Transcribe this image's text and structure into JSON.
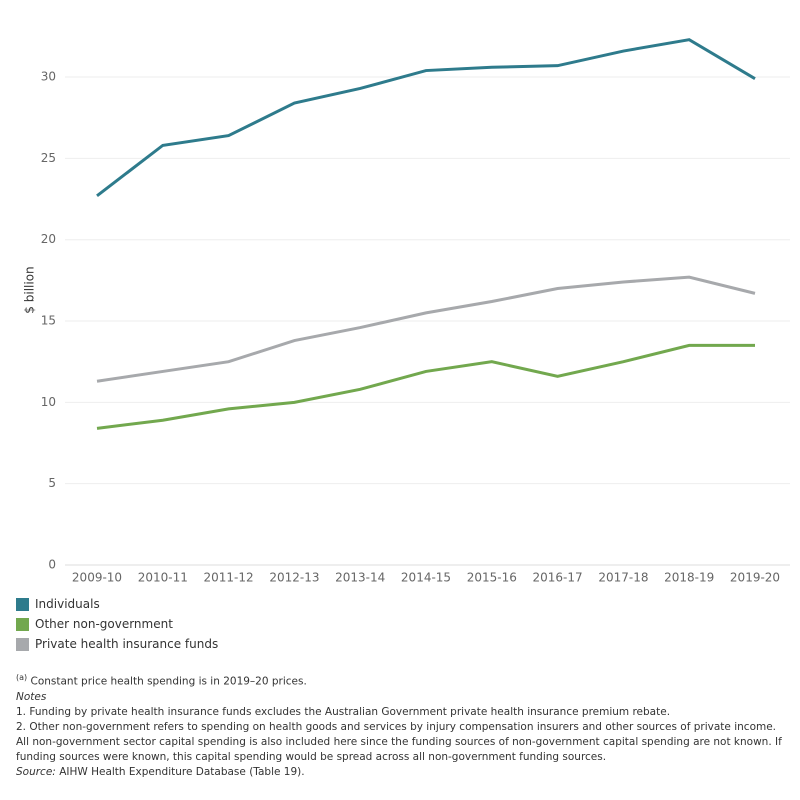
{
  "chart_data": {
    "type": "line",
    "y_label": "$ billion",
    "categories": [
      "2009-10",
      "2010-11",
      "2011-12",
      "2012-13",
      "2013-14",
      "2014-15",
      "2015-16",
      "2016-17",
      "2017-18",
      "2018-19",
      "2019-20"
    ],
    "series": [
      {
        "name": "Individuals",
        "color": "#2e7b8c",
        "values": [
          22.7,
          25.8,
          26.4,
          28.4,
          29.3,
          30.4,
          30.6,
          30.7,
          31.6,
          32.3,
          29.9
        ]
      },
      {
        "name": "Other non-government",
        "color": "#72a84e",
        "values": [
          8.4,
          8.9,
          9.6,
          10.0,
          10.8,
          11.9,
          12.5,
          11.6,
          12.5,
          13.5,
          13.5
        ]
      },
      {
        "name": "Private health insurance funds",
        "color": "#a7a9ac",
        "values": [
          11.3,
          11.9,
          12.5,
          13.8,
          14.6,
          15.5,
          16.2,
          17.0,
          17.4,
          17.7,
          16.7
        ]
      }
    ],
    "ylim": [
      0,
      34
    ],
    "yticks": [
      0,
      5,
      10,
      15,
      20,
      25,
      30
    ],
    "grid": true
  },
  "notes": {
    "marker": "(a)",
    "a": "Constant price health spending is in 2019–20 prices.",
    "heading": "Notes",
    "n1": "1.   Funding by private health insurance funds excludes the Australian Government private health insurance premium rebate.",
    "n2": "2.   Other non-government refers to spending on health goods and services by injury compensation insurers and other sources of private income. All non-government sector capital spending is also included here since the funding sources of non-government capital spending are not known. If funding sources were known, this capital spending would be spread across all non-government funding sources.",
    "source_label": "Source:",
    "source": "AIHW Health Expenditure Database (Table 19)."
  }
}
